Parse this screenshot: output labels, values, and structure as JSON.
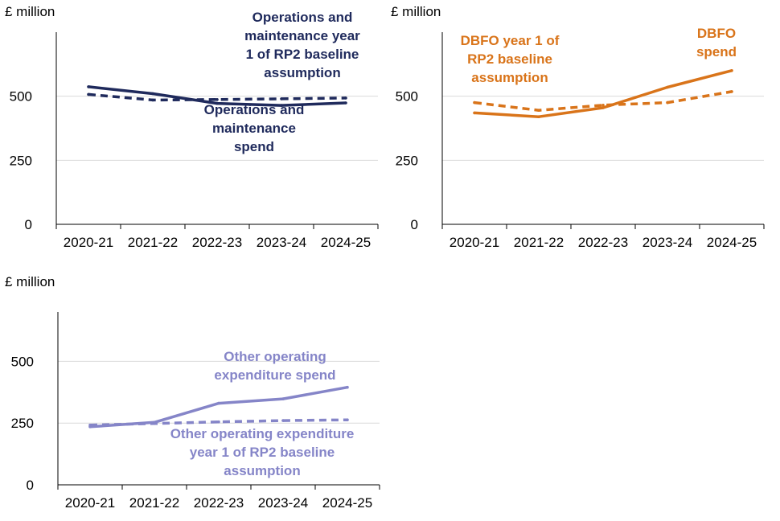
{
  "chart_data": [
    {
      "type": "line",
      "panel": "operations-and-maintenance",
      "unit_label": "£ million",
      "categories": [
        "2020-21",
        "2021-22",
        "2022-23",
        "2023-24",
        "2024-25"
      ],
      "ylim": [
        0,
        750
      ],
      "yticks": [
        0,
        250,
        500
      ],
      "grid": true,
      "series": [
        {
          "name": "Operations and maintenance spend",
          "label_lines": [
            "Operations and",
            "maintenance",
            "spend"
          ],
          "style": "solid",
          "color": "#1F2A5C",
          "values": [
            537,
            510,
            472,
            464,
            474
          ]
        },
        {
          "name": "Operations and maintenance year 1 of RP2 baseline assumption",
          "label_lines": [
            "Operations and",
            "maintenance year",
            "1 of RP2 baseline",
            "assumption"
          ],
          "style": "dashed",
          "color": "#1F2A5C",
          "values": [
            507,
            485,
            487,
            490,
            493
          ]
        }
      ]
    },
    {
      "type": "line",
      "panel": "dbfo",
      "unit_label": "£ million",
      "categories": [
        "2020-21",
        "2021-22",
        "2022-23",
        "2023-24",
        "2024-25"
      ],
      "ylim": [
        0,
        750
      ],
      "yticks": [
        0,
        250,
        500
      ],
      "grid": true,
      "series": [
        {
          "name": "DBFO spend",
          "label_lines": [
            "DBFO",
            "spend"
          ],
          "style": "solid",
          "color": "#D9741A",
          "values": [
            435,
            420,
            455,
            535,
            600
          ]
        },
        {
          "name": "DBFO year 1 of RP2 baseline assumption",
          "label_lines": [
            "DBFO year 1 of",
            "RP2 baseline",
            "assumption"
          ],
          "style": "dashed",
          "color": "#D9741A",
          "values": [
            475,
            445,
            465,
            475,
            518
          ]
        }
      ]
    },
    {
      "type": "line",
      "panel": "other-operating-expenditure",
      "unit_label": "£ million",
      "categories": [
        "2020-21",
        "2021-22",
        "2022-23",
        "2023-24",
        "2024-25"
      ],
      "ylim": [
        0,
        700
      ],
      "yticks": [
        0,
        250,
        500
      ],
      "grid": true,
      "series": [
        {
          "name": "Other operating expenditure spend",
          "label_lines": [
            "Other operating",
            "expenditure spend"
          ],
          "style": "solid",
          "color": "#8585C8",
          "values": [
            235,
            253,
            330,
            348,
            395
          ]
        },
        {
          "name": "Other operating expenditure year 1 of RP2 baseline assumption",
          "label_lines": [
            "Other operating expenditure",
            "year 1 of RP2 baseline",
            "assumption"
          ],
          "style": "dashed",
          "color": "#8585C8",
          "values": [
            242,
            248,
            255,
            260,
            263
          ]
        }
      ]
    }
  ]
}
